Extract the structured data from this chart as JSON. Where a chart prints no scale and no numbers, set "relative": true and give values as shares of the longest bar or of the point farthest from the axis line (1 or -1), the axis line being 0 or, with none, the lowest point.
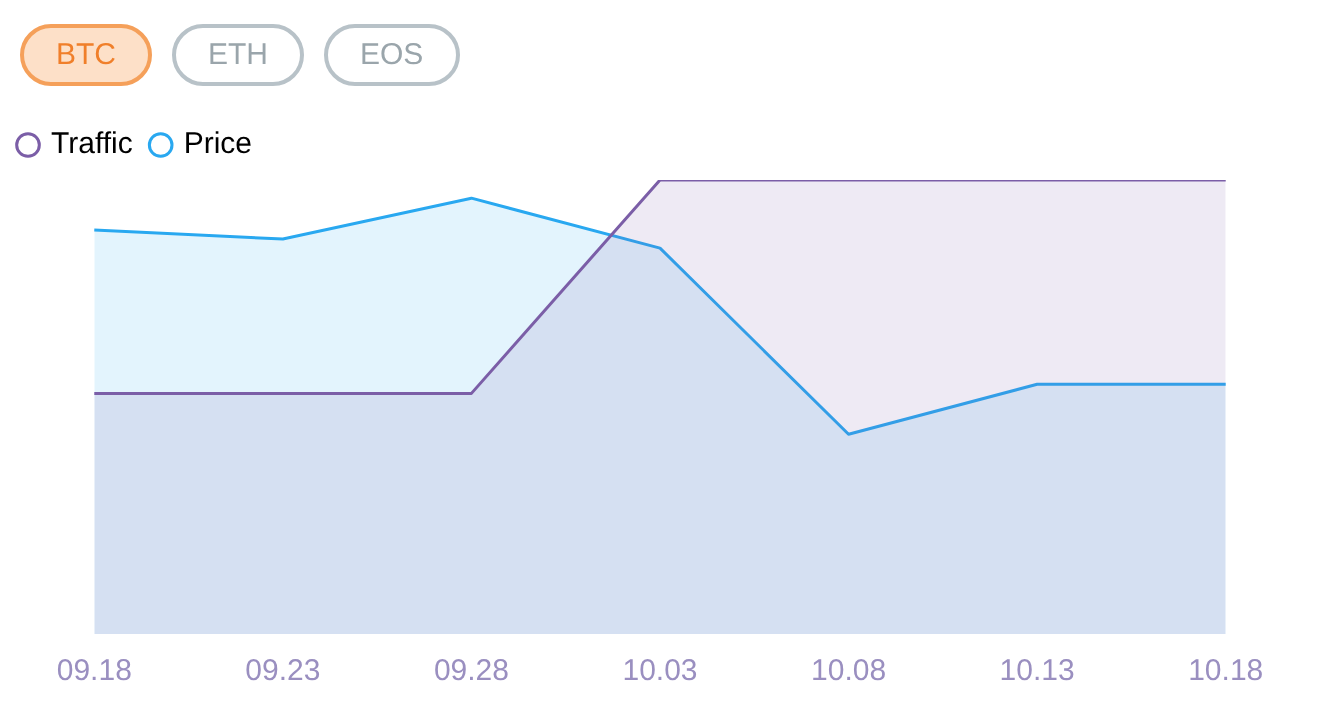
{
  "chart_data": {
    "type": "area",
    "relative": true,
    "categories": [
      "09.18",
      "09.23",
      "09.28",
      "10.03",
      "10.08",
      "10.13",
      "10.18"
    ],
    "series": [
      {
        "name": "Traffic",
        "color": "#7b5ea7",
        "values": [
          0.53,
          0.53,
          0.53,
          1,
          1,
          1,
          1
        ]
      },
      {
        "name": "Price",
        "color": "#29a8f0",
        "values": [
          0.89,
          0.87,
          0.96,
          0.85,
          0.44,
          0.55,
          0.55
        ]
      }
    ],
    "legend": "top left",
    "grid": false,
    "marker": "none",
    "line_style": "solid",
    "annotations": [
      "BTC",
      "ETH",
      "EOS"
    ]
  }
}
